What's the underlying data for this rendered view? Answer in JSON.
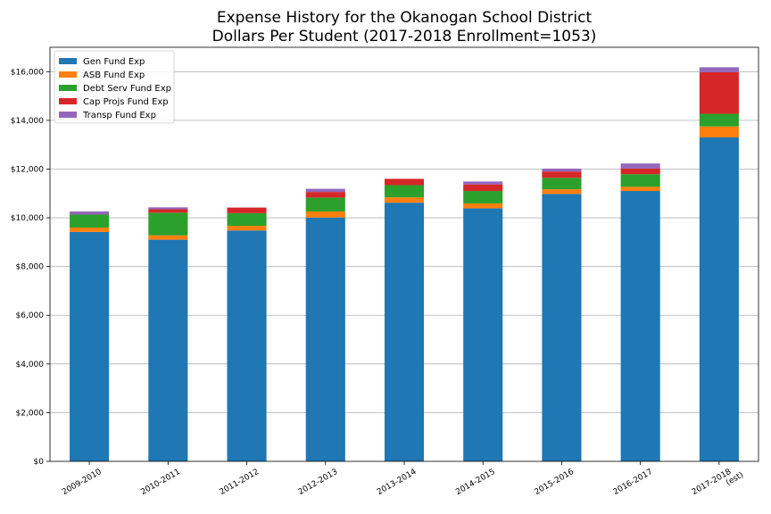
{
  "chart_data": {
    "type": "bar",
    "stacked": true,
    "title": "Expense History for the Okanogan School District",
    "subtitle": "Dollars Per Student (2017-2018 Enrollment=1053)",
    "xlabel": "",
    "ylabel": "",
    "ylim": [
      0,
      17000
    ],
    "yticks": [
      0,
      2000,
      4000,
      6000,
      8000,
      10000,
      12000,
      14000,
      16000
    ],
    "ytick_labels": [
      "$0",
      "$2,000",
      "$4,000",
      "$6,000",
      "$8,000",
      "$10,000",
      "$12,000",
      "$14,000",
      "$16,000"
    ],
    "grid": "horizontal",
    "legend_position": "top-left",
    "categories": [
      [
        "2009-2010"
      ],
      [
        "2010-2011"
      ],
      [
        "2011-2012"
      ],
      [
        "2012-2013"
      ],
      [
        "2013-2014"
      ],
      [
        "2014-2015"
      ],
      [
        "2015-2016"
      ],
      [
        "2016-2017"
      ],
      [
        "2017-2018",
        "(est)"
      ]
    ],
    "series": [
      {
        "name": "Gen Fund Exp",
        "color": "#1f77b4",
        "values": [
          9420,
          9100,
          9480,
          10010,
          10620,
          10390,
          10980,
          11100,
          13300
        ]
      },
      {
        "name": "ASB Fund Exp",
        "color": "#ff7f0e",
        "values": [
          180,
          180,
          190,
          250,
          220,
          200,
          190,
          170,
          450
        ]
      },
      {
        "name": "Debt Serv Fund Exp",
        "color": "#2ca02c",
        "values": [
          530,
          930,
          520,
          570,
          500,
          510,
          470,
          520,
          520
        ]
      },
      {
        "name": "Cap Projs Fund Exp",
        "color": "#d62728",
        "values": [
          0,
          140,
          230,
          230,
          260,
          270,
          260,
          230,
          1710
        ]
      },
      {
        "name": "Transp Fund Exp",
        "color": "#9467bd",
        "values": [
          130,
          80,
          0,
          130,
          0,
          120,
          120,
          210,
          200
        ]
      }
    ]
  }
}
